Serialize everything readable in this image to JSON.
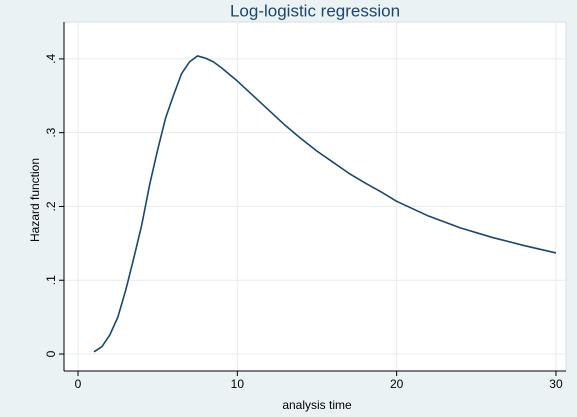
{
  "chart_data": {
    "type": "line",
    "title": "Log-logistic regression",
    "x_label": "analysis time",
    "y_label": "Hazard function",
    "x": [
      1,
      1.5,
      2,
      2.5,
      3,
      3.5,
      4,
      4.5,
      5,
      5.5,
      6,
      6.5,
      7,
      7.5,
      8,
      8.5,
      9,
      10,
      11,
      12,
      13,
      14,
      15,
      16,
      17,
      18,
      19,
      20,
      22,
      24,
      26,
      28,
      30
    ],
    "series": [
      {
        "name": "Hazard function",
        "color": "#1a476f",
        "values": [
          0.003,
          0.01,
          0.026,
          0.05,
          0.087,
          0.13,
          0.175,
          0.23,
          0.277,
          0.32,
          0.351,
          0.38,
          0.396,
          0.404,
          0.401,
          0.396,
          0.388,
          0.37,
          0.35,
          0.33,
          0.31,
          0.292,
          0.275,
          0.26,
          0.245,
          0.232,
          0.22,
          0.207,
          0.187,
          0.171,
          0.158,
          0.147,
          0.137
        ]
      }
    ],
    "xlim": [
      -0.88,
      30.63
    ],
    "ylim": [
      -0.023,
      0.45
    ],
    "xticks": [
      0,
      10,
      20,
      30
    ],
    "yticks": [
      {
        "value": 0,
        "label": "0"
      },
      {
        "value": 0.1,
        "label": ".1"
      },
      {
        "value": 0.2,
        "label": ".2"
      },
      {
        "value": 0.3,
        "label": ".3"
      },
      {
        "value": 0.4,
        "label": ".4"
      }
    ],
    "grid": true
  }
}
